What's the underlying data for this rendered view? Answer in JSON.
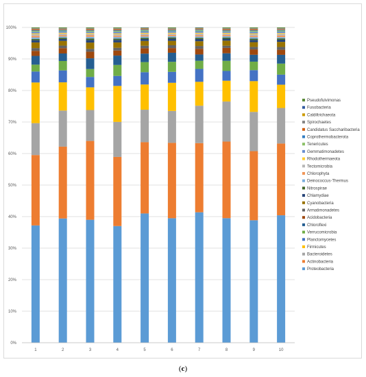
{
  "caption": {
    "open": "(",
    "letter": "c",
    "close": ")"
  },
  "chart_data": {
    "type": "bar",
    "stacked": true,
    "percent": true,
    "categories": [
      "1",
      "2",
      "3",
      "4",
      "5",
      "6",
      "7",
      "8",
      "9",
      "10"
    ],
    "ylim": [
      0,
      100
    ],
    "yticks": [
      "0%",
      "10%",
      "20%",
      "30%",
      "40%",
      "50%",
      "60%",
      "70%",
      "80%",
      "90%",
      "100%"
    ],
    "grid": true,
    "legend_position": "right",
    "series": [
      {
        "name": "Proteobacteria",
        "color": "#5b9bd5",
        "values": [
          37.5,
          39.6,
          39.0,
          37.3,
          41.0,
          39.8,
          41.5,
          39.5,
          39.0,
          40.5
        ]
      },
      {
        "name": "Actinobacteria",
        "color": "#ed7d31",
        "values": [
          22.5,
          22.9,
          25.0,
          22.1,
          22.6,
          24.1,
          22.0,
          24.3,
          22.0,
          22.8
        ]
      },
      {
        "name": "Bacteroidetes",
        "color": "#a5a5a5",
        "values": [
          10.2,
          11.5,
          9.8,
          11.2,
          10.3,
          10.2,
          11.9,
          12.7,
          12.5,
          11.3
        ]
      },
      {
        "name": "Firmicutes",
        "color": "#ffc000",
        "values": [
          13.0,
          9.0,
          7.2,
          11.5,
          8.0,
          9.0,
          7.6,
          6.6,
          9.8,
          7.4
        ]
      },
      {
        "name": "Planctomycetes",
        "color": "#4472c4",
        "values": [
          3.5,
          3.8,
          3.3,
          3.2,
          3.9,
          3.5,
          4.1,
          3.1,
          3.5,
          3.2
        ]
      },
      {
        "name": "Verrucomicrobia",
        "color": "#70ad47",
        "values": [
          2.2,
          3.0,
          2.5,
          3.5,
          3.2,
          3.2,
          2.6,
          3.2,
          2.7,
          3.5
        ]
      },
      {
        "name": "Chloroflexi",
        "color": "#255e91",
        "values": [
          2.8,
          2.4,
          3.4,
          3.0,
          2.7,
          2.9,
          2.0,
          2.4,
          2.2,
          2.8
        ]
      },
      {
        "name": "Acidobacteria",
        "color": "#9e480e",
        "values": [
          1.6,
          1.7,
          2.1,
          1.6,
          1.7,
          1.5,
          1.8,
          1.7,
          1.7,
          1.6
        ]
      },
      {
        "name": "Armatimonadetes",
        "color": "#636363",
        "values": [
          0.9,
          0.8,
          0.9,
          0.9,
          0.8,
          0.9,
          0.9,
          0.7,
          0.8,
          0.9
        ]
      },
      {
        "name": "Cyanobacteria",
        "color": "#997300",
        "values": [
          1.8,
          1.5,
          2.0,
          1.7,
          1.5,
          1.4,
          1.5,
          1.6,
          1.5,
          1.6
        ]
      },
      {
        "name": "Chlamydiae",
        "color": "#264478",
        "values": [
          0.7,
          0.6,
          0.8,
          0.8,
          0.6,
          0.7,
          0.7,
          0.6,
          0.7,
          0.7
        ]
      },
      {
        "name": "Nitrospirae",
        "color": "#43682b",
        "values": [
          0.4,
          0.4,
          0.5,
          0.4,
          0.4,
          0.4,
          0.4,
          0.4,
          0.4,
          0.4
        ]
      },
      {
        "name": "Deinococcus-Thermus",
        "color": "#7cafdd",
        "values": [
          0.5,
          0.4,
          0.5,
          0.5,
          0.4,
          0.4,
          0.4,
          0.4,
          0.5,
          0.4
        ]
      },
      {
        "name": "Chlorophyta",
        "color": "#f1975a",
        "values": [
          0.5,
          0.4,
          0.5,
          0.4,
          0.4,
          0.4,
          0.4,
          0.4,
          0.4,
          0.5
        ]
      },
      {
        "name": "Tectomicrobia",
        "color": "#b7b7b7",
        "values": [
          0.5,
          0.5,
          0.4,
          0.5,
          0.5,
          0.4,
          0.5,
          0.4,
          0.5,
          0.5
        ]
      },
      {
        "name": "Rhodothermaeota",
        "color": "#ffcd33",
        "values": [
          0.3,
          0.3,
          0.3,
          0.3,
          0.3,
          0.3,
          0.3,
          0.3,
          0.3,
          0.3
        ]
      },
      {
        "name": "Gemmatimonadetes",
        "color": "#698ed0",
        "values": [
          0.5,
          0.5,
          0.4,
          0.5,
          0.5,
          0.5,
          0.5,
          0.4,
          0.5,
          0.5
        ]
      },
      {
        "name": "Tenericutes",
        "color": "#8cc168",
        "values": [
          0.3,
          0.2,
          0.3,
          0.3,
          0.3,
          0.2,
          0.3,
          0.2,
          0.3,
          0.3
        ]
      },
      {
        "name": "Coprothermobacterota",
        "color": "#327dc2",
        "values": [
          0.2,
          0.2,
          0.2,
          0.2,
          0.2,
          0.2,
          0.2,
          0.2,
          0.2,
          0.2
        ]
      },
      {
        "name": "Candidatus Saccharibacteria",
        "color": "#d26012",
        "values": [
          0.3,
          0.2,
          0.3,
          0.3,
          0.2,
          0.2,
          0.2,
          0.3,
          0.3,
          0.2
        ]
      },
      {
        "name": "Spirochaetes",
        "color": "#848484",
        "values": [
          0.2,
          0.2,
          0.2,
          0.2,
          0.2,
          0.2,
          0.2,
          0.2,
          0.2,
          0.2
        ]
      },
      {
        "name": "Caldiltrichaeota",
        "color": "#cc9a00",
        "values": [
          0.1,
          0.1,
          0.1,
          0.1,
          0.1,
          0.1,
          0.1,
          0.1,
          0.1,
          0.1
        ]
      },
      {
        "name": "Fusobacteria",
        "color": "#335aa1",
        "values": [
          0.1,
          0.1,
          0.1,
          0.1,
          0.1,
          0.1,
          0.1,
          0.1,
          0.1,
          0.1
        ]
      },
      {
        "name": "Pseudofulvimonas",
        "color": "#5a8a39",
        "values": [
          0.2,
          0.2,
          0.2,
          0.2,
          0.1,
          0.2,
          0.1,
          0.2,
          0.2,
          0.2
        ]
      }
    ]
  }
}
